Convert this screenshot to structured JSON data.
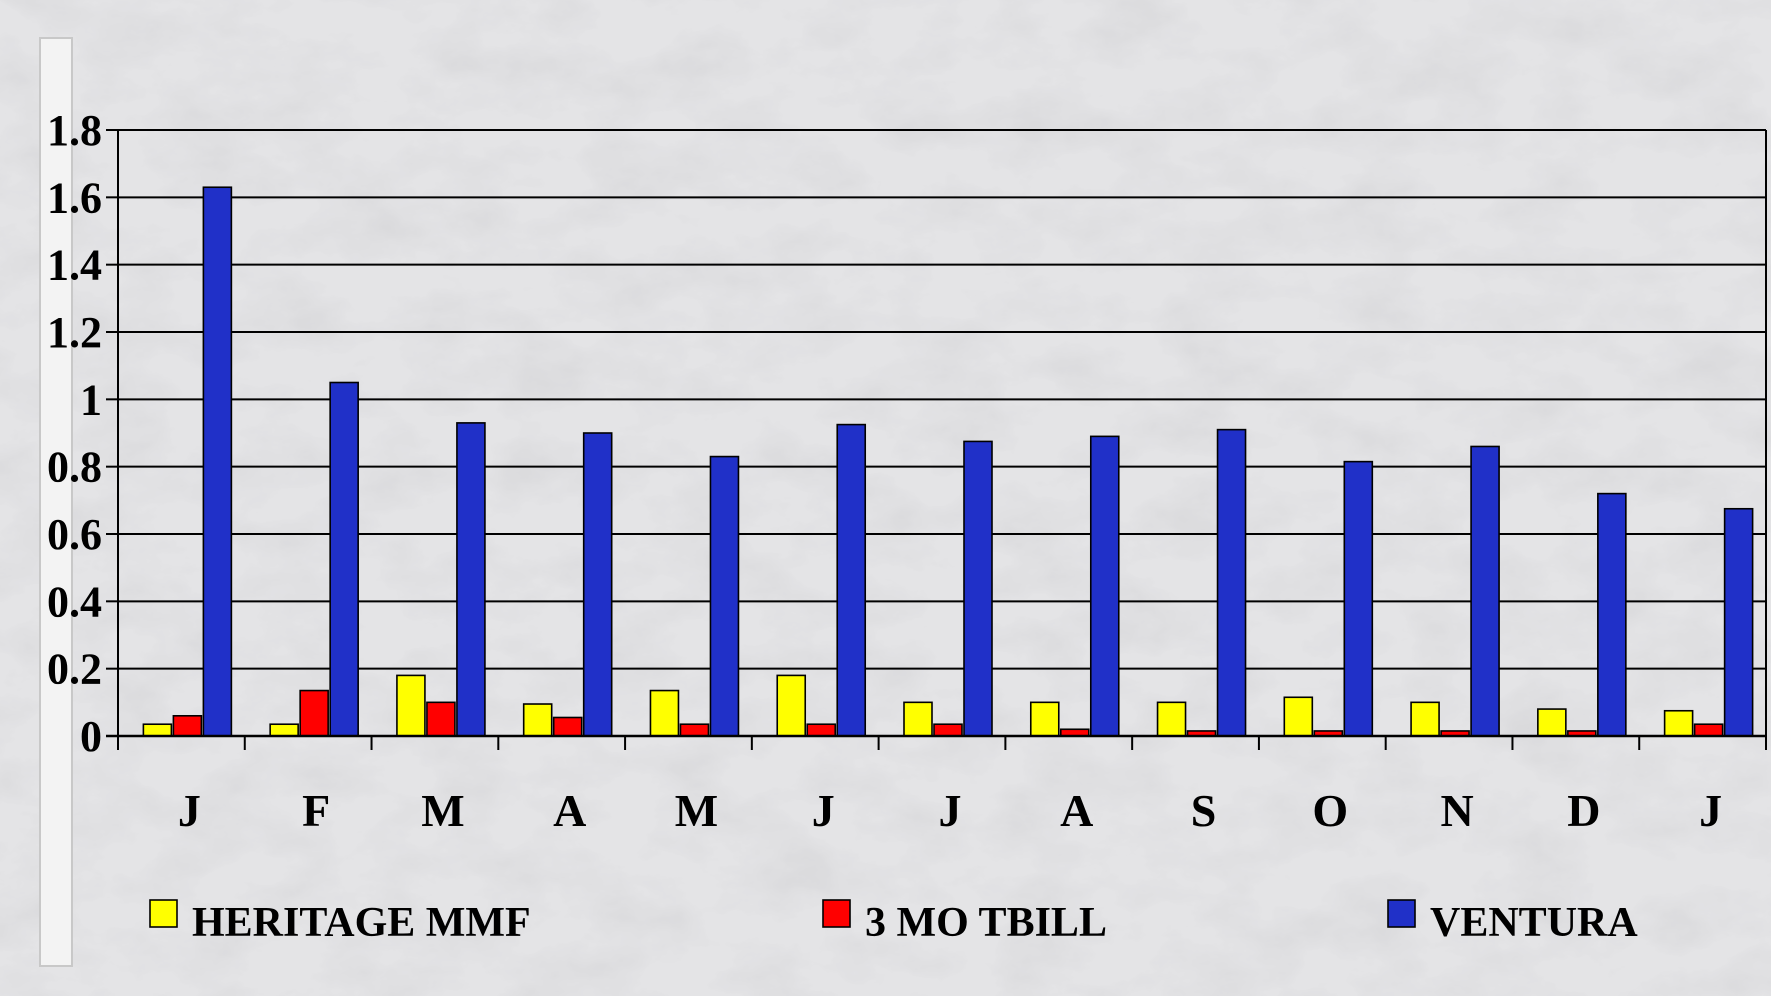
{
  "chart_data": {
    "type": "bar",
    "title": "",
    "xlabel": "",
    "ylabel": "",
    "ylim": [
      0,
      1.8
    ],
    "yticks": [
      "0",
      "0.2",
      "0.4",
      "0.6",
      "0.8",
      "1",
      "1.2",
      "1.4",
      "1.6",
      "1.8"
    ],
    "grid": true,
    "legend_position": "bottom",
    "categories": [
      "J",
      "F",
      "M",
      "A",
      "M",
      "J",
      "J",
      "A",
      "S",
      "O",
      "N",
      "D",
      "J"
    ],
    "series": [
      {
        "name": "HERITAGE MMF",
        "color": "#ffff00",
        "values": [
          0.035,
          0.035,
          0.18,
          0.095,
          0.135,
          0.18,
          0.1,
          0.1,
          0.1,
          0.115,
          0.1,
          0.08,
          0.075
        ]
      },
      {
        "name": "3 MO TBILL",
        "color": "#ff0000",
        "values": [
          0.06,
          0.135,
          0.1,
          0.055,
          0.035,
          0.035,
          0.035,
          0.02,
          0.015,
          0.015,
          0.015,
          0.015,
          0.035
        ]
      },
      {
        "name": "VENTURA",
        "color": "#2030c8",
        "values": [
          1.63,
          1.05,
          0.93,
          0.9,
          0.83,
          0.925,
          0.875,
          0.89,
          0.91,
          0.815,
          0.86,
          0.72,
          0.675
        ]
      }
    ]
  }
}
